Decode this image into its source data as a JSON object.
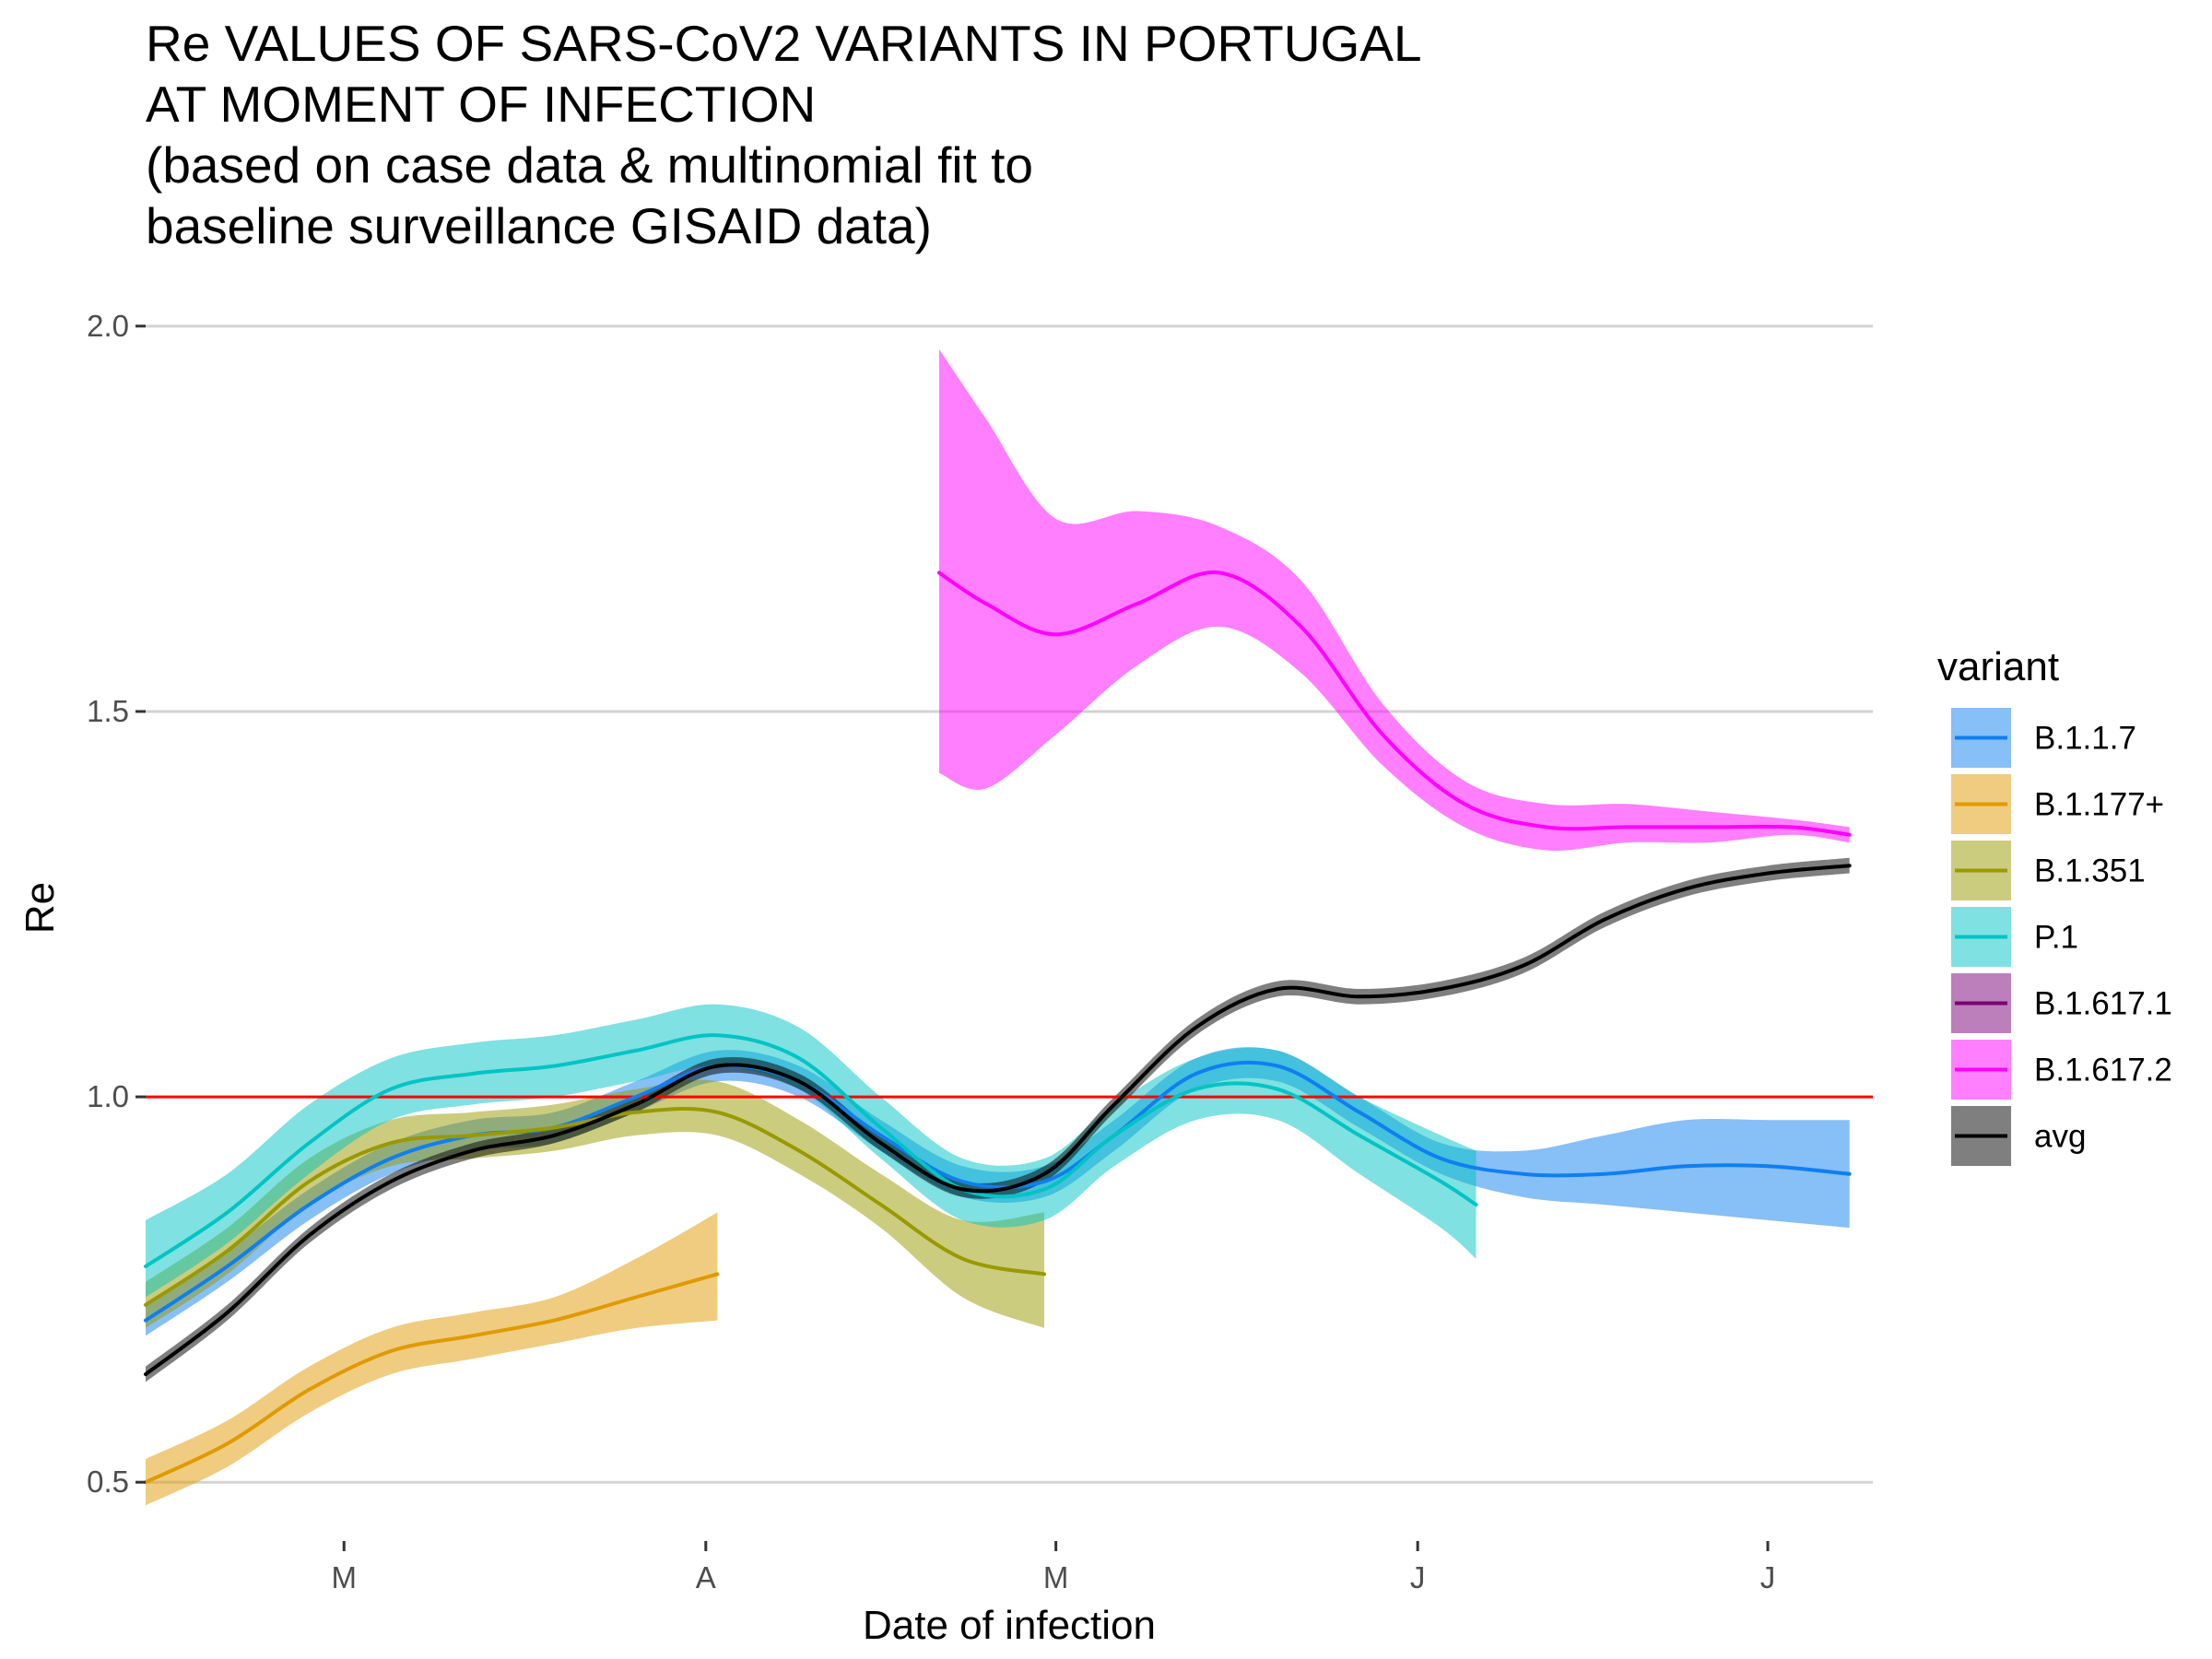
{
  "chart_data": {
    "type": "line",
    "title_lines": [
      "Re VALUES OF SARS-CoV2 VARIANTS IN PORTUGAL",
      "AT MOMENT OF INFECTION",
      "(based on case data & multinomial fit to",
      "baseline surveillance GISAID data)"
    ],
    "xlabel": "Date of infection",
    "ylabel": "Re",
    "x_axis": "date",
    "xlim": [
      "2021-02-12",
      "2021-07-10"
    ],
    "ylim": [
      0.45,
      2.05
    ],
    "x_ticks": [
      {
        "date": "2021-03-01",
        "label": "M"
      },
      {
        "date": "2021-04-01",
        "label": "A"
      },
      {
        "date": "2021-05-01",
        "label": "M"
      },
      {
        "date": "2021-06-01",
        "label": "J"
      },
      {
        "date": "2021-07-01",
        "label": "J"
      }
    ],
    "y_ticks": [
      {
        "value": 0.5,
        "label": "0.5"
      },
      {
        "value": 1.0,
        "label": "1.0"
      },
      {
        "value": 1.5,
        "label": "1.5"
      },
      {
        "value": 2.0,
        "label": "2.0"
      }
    ],
    "grid": "horizontal major",
    "reference_line": {
      "y": 1.0,
      "color": "#ff0000"
    },
    "legend": {
      "title": "variant",
      "position": "right"
    },
    "series": [
      {
        "name": "B.1.1.7",
        "color": "#0f7ff0",
        "points": [
          [
            "2021-02-12",
            0.71,
            0.69,
            0.73
          ],
          [
            "2021-02-19",
            0.78,
            0.76,
            0.8
          ],
          [
            "2021-02-26",
            0.86,
            0.84,
            0.88
          ],
          [
            "2021-03-05",
            0.92,
            0.9,
            0.94
          ],
          [
            "2021-03-12",
            0.95,
            0.93,
            0.97
          ],
          [
            "2021-03-19",
            0.96,
            0.94,
            0.98
          ],
          [
            "2021-03-26",
            1.0,
            0.98,
            1.02
          ],
          [
            "2021-04-02",
            1.04,
            1.02,
            1.06
          ],
          [
            "2021-04-09",
            1.02,
            1.0,
            1.04
          ],
          [
            "2021-04-16",
            0.95,
            0.93,
            0.97
          ],
          [
            "2021-04-23",
            0.89,
            0.87,
            0.91
          ],
          [
            "2021-04-30",
            0.89,
            0.87,
            0.91
          ],
          [
            "2021-05-06",
            0.95,
            0.93,
            0.97
          ],
          [
            "2021-05-13",
            1.03,
            1.01,
            1.05
          ],
          [
            "2021-05-20",
            1.04,
            1.02,
            1.06
          ],
          [
            "2021-05-27",
            0.98,
            0.96,
            1.0
          ],
          [
            "2021-06-03",
            0.92,
            0.9,
            0.94
          ],
          [
            "2021-06-10",
            0.9,
            0.87,
            0.93
          ],
          [
            "2021-06-17",
            0.9,
            0.86,
            0.95
          ],
          [
            "2021-06-24",
            0.91,
            0.85,
            0.97
          ],
          [
            "2021-07-01",
            0.91,
            0.84,
            0.97
          ],
          [
            "2021-07-08",
            0.9,
            0.83,
            0.97
          ]
        ]
      },
      {
        "name": "B.1.177+",
        "color": "#e09a00",
        "points": [
          [
            "2021-02-12",
            0.5,
            0.47,
            0.53
          ],
          [
            "2021-02-19",
            0.55,
            0.52,
            0.58
          ],
          [
            "2021-02-26",
            0.62,
            0.59,
            0.65
          ],
          [
            "2021-03-05",
            0.67,
            0.64,
            0.7
          ],
          [
            "2021-03-12",
            0.69,
            0.66,
            0.72
          ],
          [
            "2021-03-19",
            0.71,
            0.68,
            0.74
          ],
          [
            "2021-03-26",
            0.74,
            0.7,
            0.79
          ],
          [
            "2021-04-02",
            0.77,
            0.71,
            0.85
          ]
        ]
      },
      {
        "name": "B.1.351",
        "color": "#999900",
        "points": [
          [
            "2021-02-12",
            0.73,
            0.7,
            0.76
          ],
          [
            "2021-02-19",
            0.8,
            0.77,
            0.83
          ],
          [
            "2021-02-26",
            0.89,
            0.86,
            0.92
          ],
          [
            "2021-03-05",
            0.94,
            0.91,
            0.97
          ],
          [
            "2021-03-12",
            0.95,
            0.92,
            0.98
          ],
          [
            "2021-03-19",
            0.96,
            0.93,
            0.99
          ],
          [
            "2021-03-26",
            0.98,
            0.95,
            1.01
          ],
          [
            "2021-04-02",
            0.98,
            0.95,
            1.02
          ],
          [
            "2021-04-09",
            0.93,
            0.9,
            0.97
          ],
          [
            "2021-04-16",
            0.86,
            0.83,
            0.9
          ],
          [
            "2021-04-23",
            0.79,
            0.74,
            0.84
          ],
          [
            "2021-04-30",
            0.77,
            0.7,
            0.85
          ]
        ]
      },
      {
        "name": "P.1",
        "color": "#00c4c4",
        "points": [
          [
            "2021-02-12",
            0.78,
            0.74,
            0.84
          ],
          [
            "2021-02-19",
            0.85,
            0.81,
            0.9
          ],
          [
            "2021-02-26",
            0.94,
            0.9,
            0.99
          ],
          [
            "2021-03-05",
            1.01,
            0.97,
            1.05
          ],
          [
            "2021-03-12",
            1.03,
            0.99,
            1.07
          ],
          [
            "2021-03-19",
            1.04,
            1.0,
            1.08
          ],
          [
            "2021-03-26",
            1.06,
            1.02,
            1.1
          ],
          [
            "2021-04-02",
            1.08,
            1.04,
            1.12
          ],
          [
            "2021-04-09",
            1.05,
            1.01,
            1.09
          ],
          [
            "2021-04-16",
            0.96,
            0.92,
            1.0
          ],
          [
            "2021-04-23",
            0.88,
            0.84,
            0.92
          ],
          [
            "2021-04-30",
            0.88,
            0.84,
            0.92
          ],
          [
            "2021-05-06",
            0.95,
            0.91,
            0.99
          ],
          [
            "2021-05-13",
            1.01,
            0.97,
            1.05
          ],
          [
            "2021-05-20",
            1.01,
            0.97,
            1.06
          ],
          [
            "2021-05-27",
            0.95,
            0.9,
            1.0
          ],
          [
            "2021-06-03",
            0.89,
            0.83,
            0.95
          ],
          [
            "2021-06-06",
            0.86,
            0.79,
            0.93
          ]
        ]
      },
      {
        "name": "B.1.617.1",
        "color": "#7a0077",
        "points": []
      },
      {
        "name": "B.1.617.2",
        "color": "#ff00ff",
        "points": [
          [
            "2021-04-21",
            1.68,
            1.42,
            1.97
          ],
          [
            "2021-04-25",
            1.64,
            1.4,
            1.88
          ],
          [
            "2021-05-01",
            1.6,
            1.47,
            1.75
          ],
          [
            "2021-05-08",
            1.64,
            1.56,
            1.76
          ],
          [
            "2021-05-15",
            1.68,
            1.61,
            1.74
          ],
          [
            "2021-05-22",
            1.61,
            1.55,
            1.67
          ],
          [
            "2021-05-29",
            1.47,
            1.43,
            1.51
          ],
          [
            "2021-06-05",
            1.38,
            1.35,
            1.41
          ],
          [
            "2021-06-12",
            1.35,
            1.32,
            1.38
          ],
          [
            "2021-06-19",
            1.35,
            1.33,
            1.38
          ],
          [
            "2021-06-26",
            1.35,
            1.33,
            1.37
          ],
          [
            "2021-07-03",
            1.35,
            1.34,
            1.36
          ],
          [
            "2021-07-08",
            1.34,
            1.33,
            1.35
          ]
        ]
      },
      {
        "name": "avg",
        "color": "#000000",
        "points": [
          [
            "2021-02-12",
            0.64,
            0.63,
            0.65
          ],
          [
            "2021-02-19",
            0.72,
            0.71,
            0.73
          ],
          [
            "2021-02-26",
            0.82,
            0.81,
            0.83
          ],
          [
            "2021-03-05",
            0.89,
            0.88,
            0.9
          ],
          [
            "2021-03-12",
            0.93,
            0.92,
            0.94
          ],
          [
            "2021-03-19",
            0.95,
            0.94,
            0.96
          ],
          [
            "2021-03-26",
            0.99,
            0.98,
            1.0
          ],
          [
            "2021-04-02",
            1.04,
            1.03,
            1.05
          ],
          [
            "2021-04-09",
            1.02,
            1.01,
            1.03
          ],
          [
            "2021-04-16",
            0.94,
            0.93,
            0.95
          ],
          [
            "2021-04-23",
            0.88,
            0.87,
            0.89
          ],
          [
            "2021-04-30",
            0.9,
            0.89,
            0.91
          ],
          [
            "2021-05-06",
            0.99,
            0.98,
            1.0
          ],
          [
            "2021-05-13",
            1.09,
            1.08,
            1.1
          ],
          [
            "2021-05-20",
            1.14,
            1.13,
            1.15
          ],
          [
            "2021-05-27",
            1.13,
            1.12,
            1.14
          ],
          [
            "2021-06-03",
            1.14,
            1.13,
            1.15
          ],
          [
            "2021-06-10",
            1.17,
            1.16,
            1.18
          ],
          [
            "2021-06-17",
            1.23,
            1.22,
            1.24
          ],
          [
            "2021-06-24",
            1.27,
            1.26,
            1.28
          ],
          [
            "2021-07-01",
            1.29,
            1.28,
            1.3
          ],
          [
            "2021-07-08",
            1.3,
            1.29,
            1.31
          ]
        ]
      }
    ]
  }
}
